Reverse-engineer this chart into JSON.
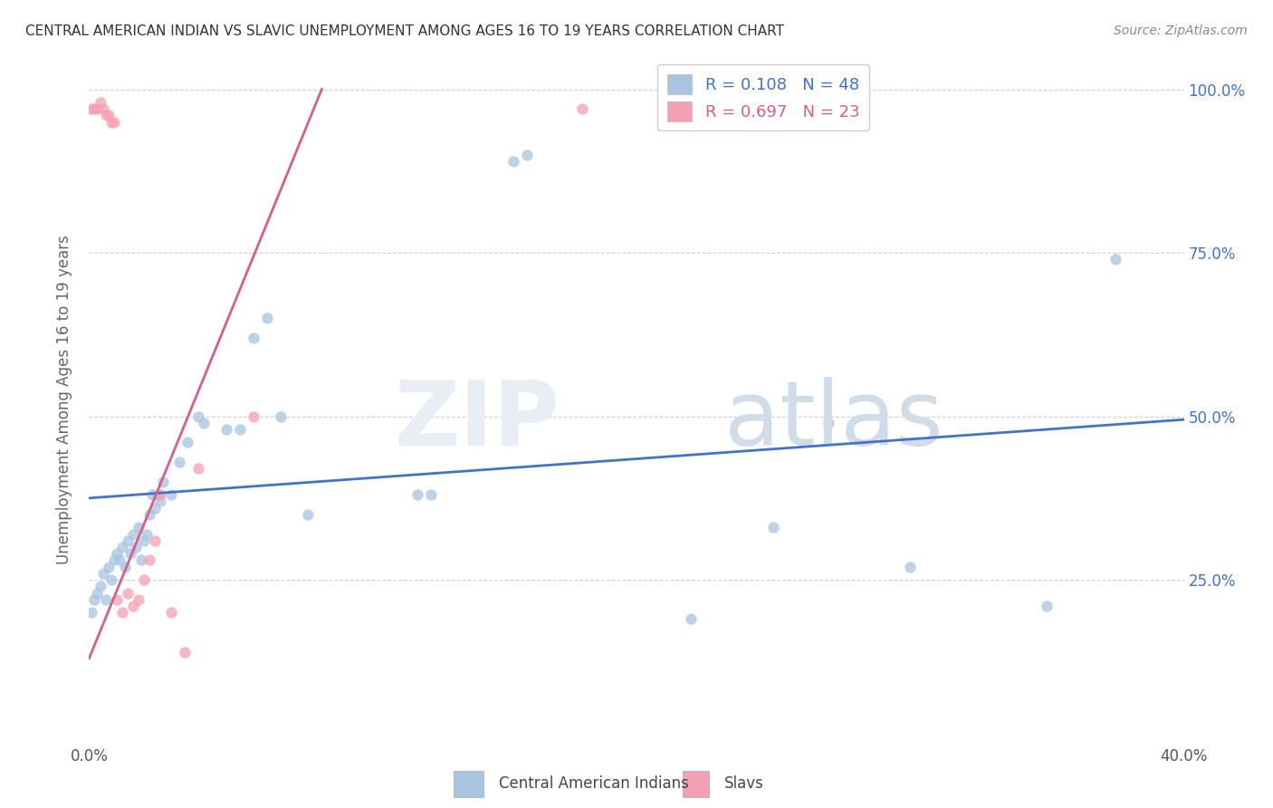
{
  "title": "CENTRAL AMERICAN INDIAN VS SLAVIC UNEMPLOYMENT AMONG AGES 16 TO 19 YEARS CORRELATION CHART",
  "source": "Source: ZipAtlas.com",
  "ylabel": "Unemployment Among Ages 16 to 19 years",
  "xlim": [
    0.0,
    0.4
  ],
  "ylim": [
    0.0,
    1.05
  ],
  "blue_scatter_x": [
    0.001,
    0.002,
    0.003,
    0.004,
    0.005,
    0.006,
    0.007,
    0.008,
    0.009,
    0.01,
    0.011,
    0.012,
    0.013,
    0.014,
    0.015,
    0.016,
    0.017,
    0.018,
    0.019,
    0.02,
    0.021,
    0.022,
    0.023,
    0.024,
    0.025,
    0.026,
    0.027,
    0.03,
    0.033,
    0.036,
    0.04,
    0.042,
    0.05,
    0.055,
    0.06,
    0.065,
    0.07,
    0.08,
    0.12,
    0.125,
    0.155,
    0.16,
    0.22,
    0.25,
    0.27,
    0.3,
    0.35,
    0.375
  ],
  "blue_scatter_y": [
    0.2,
    0.22,
    0.23,
    0.24,
    0.26,
    0.22,
    0.27,
    0.25,
    0.28,
    0.29,
    0.28,
    0.3,
    0.27,
    0.31,
    0.29,
    0.32,
    0.3,
    0.33,
    0.28,
    0.31,
    0.32,
    0.35,
    0.38,
    0.36,
    0.38,
    0.37,
    0.4,
    0.38,
    0.43,
    0.46,
    0.5,
    0.49,
    0.48,
    0.48,
    0.62,
    0.65,
    0.5,
    0.35,
    0.38,
    0.38,
    0.89,
    0.9,
    0.19,
    0.33,
    0.49,
    0.27,
    0.21,
    0.74
  ],
  "pink_scatter_x": [
    0.001,
    0.002,
    0.003,
    0.004,
    0.005,
    0.006,
    0.007,
    0.008,
    0.009,
    0.01,
    0.012,
    0.014,
    0.016,
    0.018,
    0.02,
    0.022,
    0.024,
    0.026,
    0.03,
    0.035,
    0.04,
    0.06,
    0.18
  ],
  "pink_scatter_y": [
    0.97,
    0.97,
    0.97,
    0.98,
    0.97,
    0.96,
    0.96,
    0.95,
    0.95,
    0.22,
    0.2,
    0.23,
    0.21,
    0.22,
    0.25,
    0.28,
    0.31,
    0.38,
    0.2,
    0.14,
    0.42,
    0.5,
    0.97
  ],
  "blue_line_x": [
    0.0,
    0.4
  ],
  "blue_line_y": [
    0.375,
    0.495
  ],
  "pink_line_x": [
    0.0,
    0.085
  ],
  "pink_line_y": [
    0.13,
    1.0
  ],
  "blue_dot_color": "#a8c4e0",
  "pink_dot_color": "#f4a0b4",
  "blue_line_color": "#4472c4",
  "pink_line_color": "#d45f8a",
  "legend_blue_color": "#a8c4e0",
  "legend_pink_color": "#f4a0b4",
  "legend_blue_text_color": "#4472c4",
  "legend_pink_text_color": "#d45f8a",
  "watermark_zip_color": "#e8eef4",
  "watermark_atlas_color": "#d0dce8",
  "background_color": "#ffffff",
  "grid_color": "#cccccc",
  "ytick_color": "#4472c4",
  "title_color": "#333333",
  "source_color": "#888888",
  "ylabel_color": "#666666"
}
